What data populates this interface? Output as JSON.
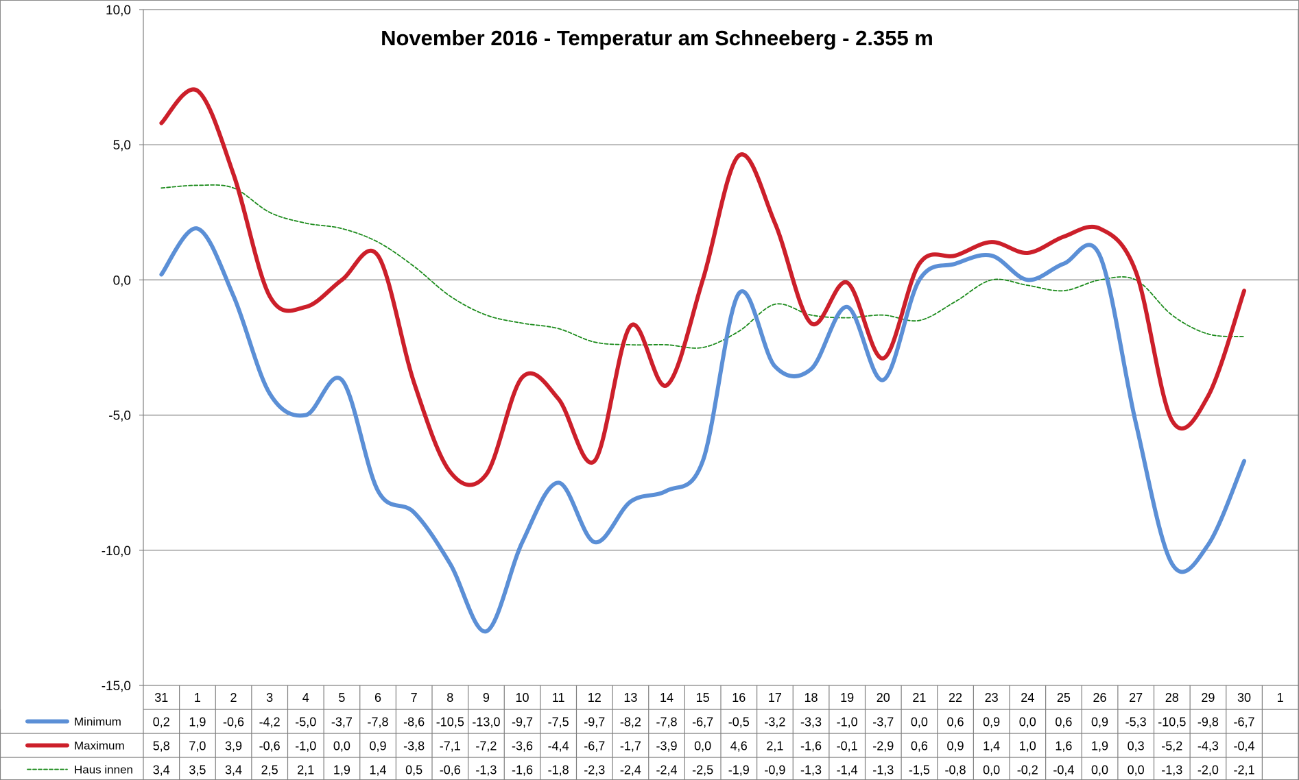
{
  "chart_data": {
    "type": "line",
    "title": "November 2016 - Temperatur am Schneeberg - 2.355 m",
    "xlabel": "",
    "ylabel": "",
    "ylim": [
      -15,
      10
    ],
    "yticks": [
      "10,0",
      "5,0",
      "0,0",
      "-5,0",
      "-10,0",
      "-15,0"
    ],
    "ytick_values": [
      10,
      5,
      0,
      -5,
      -10,
      -15
    ],
    "categories": [
      "31",
      "1",
      "2",
      "3",
      "4",
      "5",
      "6",
      "7",
      "8",
      "9",
      "10",
      "11",
      "12",
      "13",
      "14",
      "15",
      "16",
      "17",
      "18",
      "19",
      "20",
      "21",
      "22",
      "23",
      "24",
      "25",
      "26",
      "27",
      "28",
      "29",
      "30",
      "1"
    ],
    "grid": true,
    "legend": "data-table-left",
    "series": [
      {
        "name": "Minimum",
        "color": "#5b8fd6",
        "style": "solid-thick",
        "values": [
          0.2,
          1.9,
          -0.6,
          -4.2,
          -5.0,
          -3.7,
          -7.8,
          -8.6,
          -10.5,
          -13.0,
          -9.7,
          -7.5,
          -9.7,
          -8.2,
          -7.8,
          -6.7,
          -0.5,
          -3.2,
          -3.3,
          -1.0,
          -3.7,
          0.0,
          0.6,
          0.9,
          0.0,
          0.6,
          0.9,
          -5.3,
          -10.5,
          -9.8,
          -6.7,
          null
        ],
        "labels": [
          "0,2",
          "1,9",
          "-0,6",
          "-4,2",
          "-5,0",
          "-3,7",
          "-7,8",
          "-8,6",
          "-10,5",
          "-13,0",
          "-9,7",
          "-7,5",
          "-9,7",
          "-8,2",
          "-7,8",
          "-6,7",
          "-0,5",
          "-3,2",
          "-3,3",
          "-1,0",
          "-3,7",
          "0,0",
          "0,6",
          "0,9",
          "0,0",
          "0,6",
          "0,9",
          "-5,3",
          "-10,5",
          "-9,8",
          "-6,7",
          ""
        ]
      },
      {
        "name": "Maximum",
        "color": "#cc1f2a",
        "style": "solid-thick",
        "values": [
          5.8,
          7.0,
          3.9,
          -0.6,
          -1.0,
          0.0,
          0.9,
          -3.8,
          -7.1,
          -7.2,
          -3.6,
          -4.4,
          -6.7,
          -1.7,
          -3.9,
          0.0,
          4.6,
          2.1,
          -1.6,
          -0.1,
          -2.9,
          0.6,
          0.9,
          1.4,
          1.0,
          1.6,
          1.9,
          0.3,
          -5.2,
          -4.3,
          -0.4,
          null
        ],
        "labels": [
          "5,8",
          "7,0",
          "3,9",
          "-0,6",
          "-1,0",
          "0,0",
          "0,9",
          "-3,8",
          "-7,1",
          "-7,2",
          "-3,6",
          "-4,4",
          "-6,7",
          "-1,7",
          "-3,9",
          "0,0",
          "4,6",
          "2,1",
          "-1,6",
          "-0,1",
          "-2,9",
          "0,6",
          "0,9",
          "1,4",
          "1,0",
          "1,6",
          "1,9",
          "0,3",
          "-5,2",
          "-4,3",
          "-0,4",
          ""
        ]
      },
      {
        "name": "Haus innen",
        "color": "#1a8a1a",
        "style": "dashed-thin",
        "values": [
          3.4,
          3.5,
          3.4,
          2.5,
          2.1,
          1.9,
          1.4,
          0.5,
          -0.6,
          -1.3,
          -1.6,
          -1.8,
          -2.3,
          -2.4,
          -2.4,
          -2.5,
          -1.9,
          -0.9,
          -1.3,
          -1.4,
          -1.3,
          -1.5,
          -0.8,
          0.0,
          -0.2,
          -0.4,
          0.0,
          0.0,
          -1.3,
          -2.0,
          -2.1,
          null
        ],
        "labels": [
          "3,4",
          "3,5",
          "3,4",
          "2,5",
          "2,1",
          "1,9",
          "1,4",
          "0,5",
          "-0,6",
          "-1,3",
          "-1,6",
          "-1,8",
          "-2,3",
          "-2,4",
          "-2,4",
          "-2,5",
          "-1,9",
          "-0,9",
          "-1,3",
          "-1,4",
          "-1,3",
          "-1,5",
          "-0,8",
          "0,0",
          "-0,2",
          "-0,4",
          "0,0",
          "0,0",
          "-1,3",
          "-2,0",
          "-2,1",
          ""
        ]
      }
    ]
  }
}
